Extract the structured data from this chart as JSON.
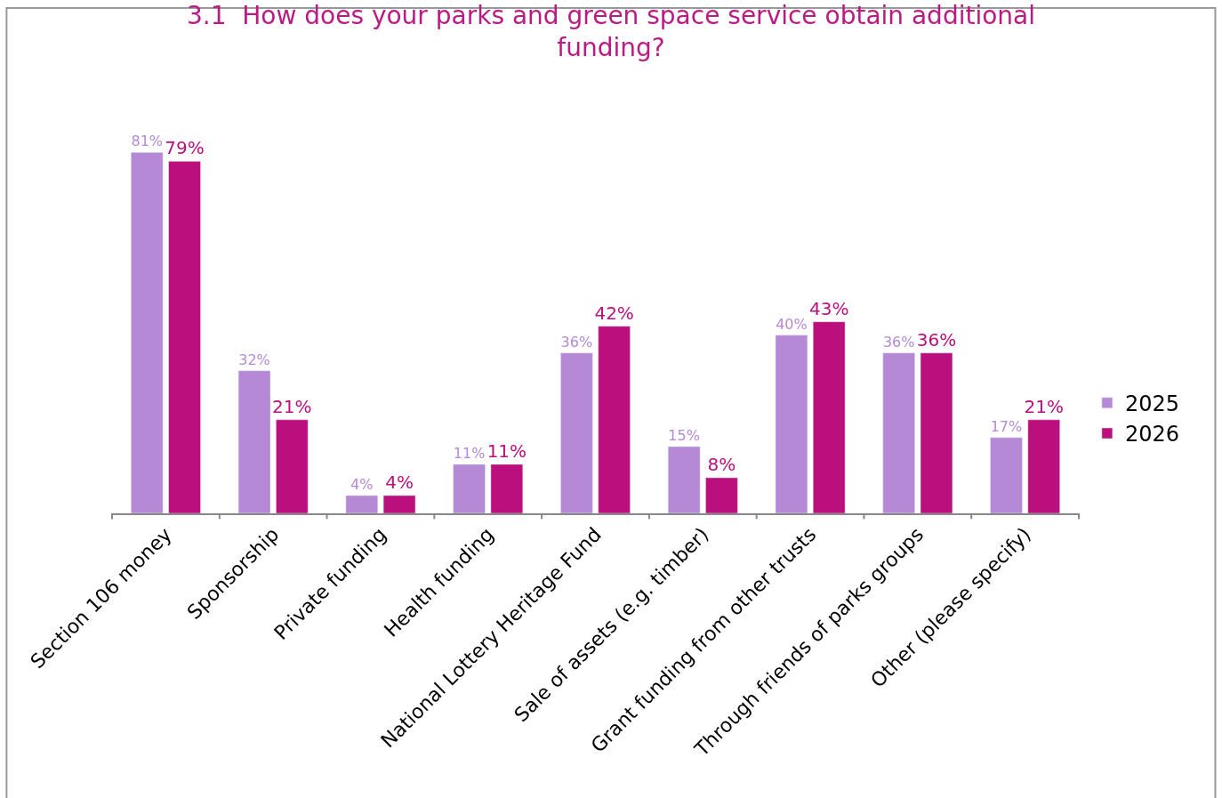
{
  "chart_data": {
    "type": "bar",
    "title": "3.1  How does your parks and green space service obtain additional funding?",
    "categories": [
      "Section 106 money",
      "Sponsorship",
      "Private funding",
      "Health funding",
      "National Lottery Heritage Fund",
      "Sale of assets (e.g. timber)",
      "Grant funding from other trusts",
      "Through friends of parks groups",
      "Other (please specify)"
    ],
    "series": [
      {
        "name": "2025",
        "color": "#b589d6",
        "values": [
          81,
          32,
          4,
          11,
          36,
          15,
          40,
          36,
          17
        ],
        "value_labels": [
          "81%",
          "32%",
          "4%",
          "11%",
          "36%",
          "15%",
          "40%",
          "36%",
          "17%"
        ]
      },
      {
        "name": "2026",
        "color": "#bb0f7d",
        "values": [
          79,
          21,
          4,
          11,
          42,
          8,
          43,
          36,
          21
        ],
        "value_labels": [
          "79%",
          "21%",
          "4%",
          "11%",
          "42%",
          "8%",
          "43%",
          "36%",
          "21%"
        ]
      }
    ],
    "legend": "right"
  }
}
